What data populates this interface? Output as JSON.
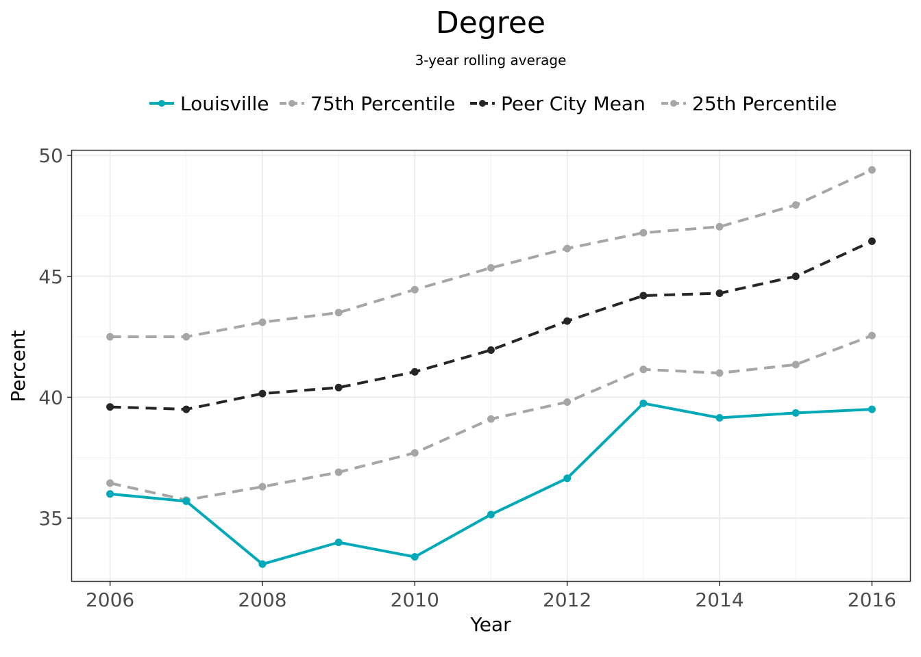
{
  "chart_data": {
    "type": "line",
    "title": "Degree",
    "subtitle": "3-year rolling average",
    "xlabel": "Year",
    "ylabel": "Percent",
    "x": [
      2006,
      2007,
      2008,
      2009,
      2010,
      2011,
      2012,
      2013,
      2014,
      2015,
      2016
    ],
    "xticks": [
      2006,
      2008,
      2010,
      2012,
      2014,
      2016
    ],
    "yticks": [
      35,
      40,
      45,
      50
    ],
    "xlim": [
      2005.5,
      2016.5
    ],
    "ylim": [
      32.4,
      50.2
    ],
    "grid": true,
    "legend_position": "top",
    "series": [
      {
        "name": "Louisville",
        "color": "#00a9b7",
        "dash": "solid",
        "values": [
          36.0,
          35.7,
          33.1,
          34.0,
          33.4,
          35.15,
          36.65,
          39.75,
          39.15,
          39.35,
          39.5
        ]
      },
      {
        "name": "75th Percentile",
        "color": "#a6a6a6",
        "dash": "dashed",
        "values": [
          42.5,
          42.5,
          43.1,
          43.5,
          44.45,
          45.35,
          46.15,
          46.8,
          47.05,
          47.95,
          49.4
        ]
      },
      {
        "name": "Peer City Mean",
        "color": "#262626",
        "dash": "dashed",
        "values": [
          39.6,
          39.5,
          40.15,
          40.4,
          41.05,
          41.95,
          43.15,
          44.2,
          44.3,
          45.0,
          46.45
        ]
      },
      {
        "name": "25th Percentile",
        "color": "#a6a6a6",
        "dash": "dashed",
        "values": [
          36.45,
          35.75,
          36.3,
          36.9,
          37.7,
          39.1,
          39.8,
          41.15,
          41.0,
          41.35,
          42.55
        ]
      }
    ]
  }
}
